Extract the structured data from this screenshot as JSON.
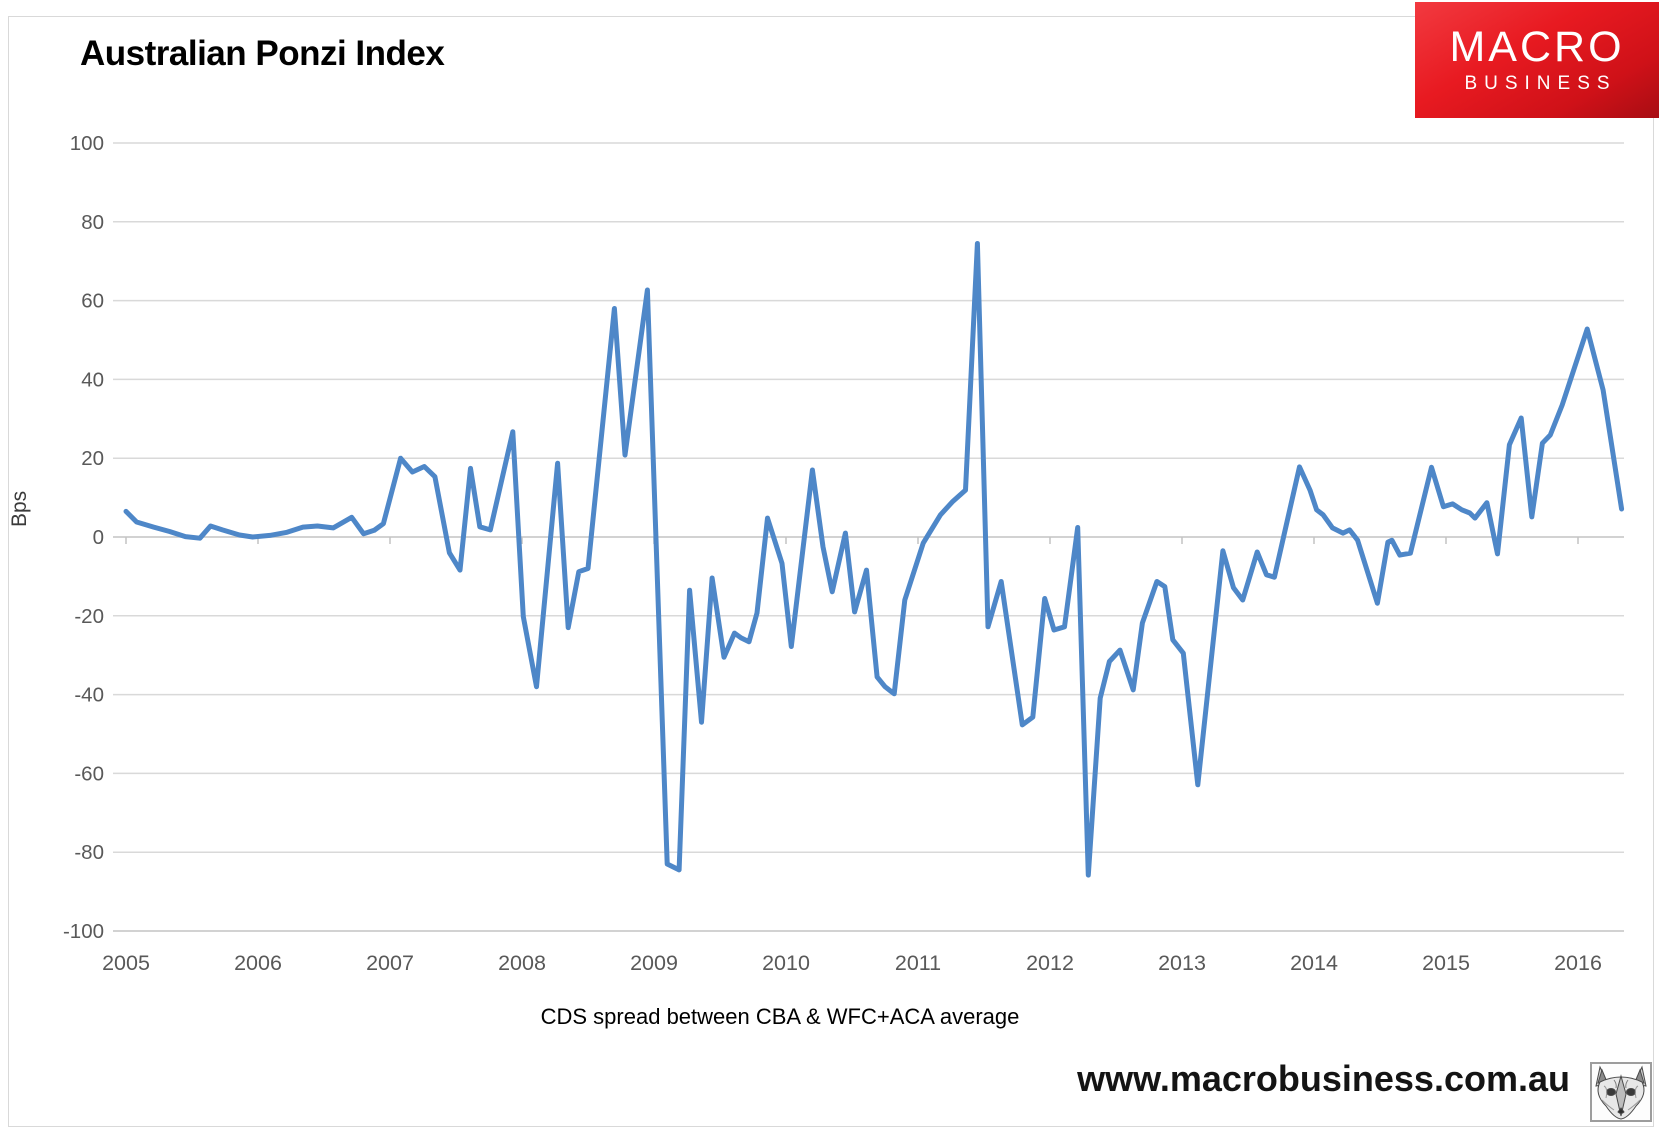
{
  "title": "Australian Ponzi Index",
  "logo": {
    "line1": "MACRO",
    "line2": "BUSINESS",
    "bg_color": "#e81a21",
    "text_color": "#ffffff"
  },
  "footer": {
    "url": "www.macrobusiness.com.au",
    "fox_icon": "fox-sketch-icon"
  },
  "chart_data": {
    "type": "line",
    "title": "Australian Ponzi Index",
    "xlabel": "CDS spread between CBA & WFC+ACA average",
    "ylabel": "Bps",
    "x_tick_labels": [
      "2005",
      "2006",
      "2007",
      "2008",
      "2009",
      "2010",
      "2011",
      "2012",
      "2013",
      "2014",
      "2015",
      "2016"
    ],
    "x_tick_years": [
      2005,
      2006,
      2007,
      2008,
      2009,
      2010,
      2011,
      2012,
      2013,
      2014,
      2015,
      2016
    ],
    "y_tick_labels": [
      "100",
      "80",
      "60",
      "40",
      "20",
      "0",
      "-20",
      "-40",
      "-60",
      "-80",
      "-100"
    ],
    "y_ticks": [
      100,
      80,
      60,
      40,
      20,
      0,
      -20,
      -40,
      -60,
      -80,
      -100
    ],
    "ylim": [
      -100,
      100
    ],
    "xlim": [
      2004.9,
      2016.35
    ],
    "grid": true,
    "legend": "none",
    "line_color": "#4e87c8",
    "grid_color": "#d9d9d9",
    "axis_color": "#c3c3c3",
    "tick_label_color": "#595959",
    "series": [
      {
        "name": "CDS spread between CBA & WFC+ACA average",
        "x": [
          2005.0,
          2005.08,
          2005.21,
          2005.33,
          2005.45,
          2005.56,
          2005.64,
          2005.73,
          2005.86,
          2005.96,
          2006.09,
          2006.22,
          2006.34,
          2006.45,
          2006.57,
          2006.71,
          2006.8,
          2006.88,
          2006.95,
          2007.08,
          2007.17,
          2007.26,
          2007.34,
          2007.45,
          2007.53,
          2007.61,
          2007.68,
          2007.76,
          2007.93,
          2008.01,
          2008.11,
          2008.27,
          2008.35,
          2008.43,
          2008.5,
          2008.7,
          2008.78,
          2008.95,
          2009.1,
          2009.19,
          2009.27,
          2009.36,
          2009.44,
          2009.53,
          2009.61,
          2009.66,
          2009.72,
          2009.78,
          2009.86,
          2009.97,
          2010.04,
          2010.2,
          2010.28,
          2010.35,
          2010.45,
          2010.52,
          2010.61,
          2010.69,
          2010.75,
          2010.82,
          2010.9,
          2011.04,
          2011.17,
          2011.26,
          2011.36,
          2011.45,
          2011.53,
          2011.63,
          2011.79,
          2011.87,
          2011.96,
          2012.03,
          2012.11,
          2012.21,
          2012.29,
          2012.38,
          2012.45,
          2012.53,
          2012.63,
          2012.7,
          2012.81,
          2012.87,
          2012.93,
          2013.01,
          2013.12,
          2013.31,
          2013.39,
          2013.46,
          2013.57,
          2013.64,
          2013.7,
          2013.89,
          2013.97,
          2014.02,
          2014.07,
          2014.14,
          2014.22,
          2014.27,
          2014.33,
          2014.48,
          2014.56,
          2014.59,
          2014.65,
          2014.73,
          2014.89,
          2014.98,
          2015.05,
          2015.12,
          2015.18,
          2015.22,
          2015.31,
          2015.39,
          2015.48,
          2015.57,
          2015.65,
          2015.73,
          2015.79,
          2015.88,
          2016.07,
          2016.19,
          2016.33
        ],
        "y": [
          6.5,
          3.8,
          2.5,
          1.4,
          0.1,
          -0.3,
          2.8,
          1.8,
          0.5,
          0.0,
          0.4,
          1.2,
          2.5,
          2.8,
          2.3,
          5.0,
          0.8,
          1.7,
          3.4,
          20.0,
          16.5,
          17.9,
          15.3,
          -4.0,
          -8.4,
          17.4,
          2.6,
          1.8,
          26.7,
          -20.2,
          -38.0,
          18.7,
          -23.0,
          -8.8,
          -8.0,
          58.0,
          20.8,
          62.7,
          -83.0,
          -84.5,
          -13.5,
          -47.0,
          -10.4,
          -30.5,
          -24.4,
          -25.6,
          -26.6,
          -19.3,
          4.8,
          -6.7,
          -27.8,
          17.0,
          -2.5,
          -13.9,
          1.0,
          -19.0,
          -8.4,
          -35.5,
          -38.0,
          -39.8,
          -16.0,
          -1.5,
          5.6,
          8.9,
          11.9,
          74.5,
          -22.8,
          -11.3,
          -47.7,
          -45.7,
          -15.6,
          -23.6,
          -22.8,
          2.4,
          -85.8,
          -40.9,
          -31.6,
          -28.7,
          -38.8,
          -21.8,
          -11.3,
          -12.6,
          -26.1,
          -29.5,
          -62.9,
          -3.5,
          -12.9,
          -16.0,
          -3.8,
          -9.6,
          -10.2,
          17.8,
          11.9,
          6.9,
          5.6,
          2.3,
          1.0,
          1.8,
          -0.8,
          -16.8,
          -1.3,
          -0.8,
          -4.6,
          -4.1,
          17.7,
          7.7,
          8.4,
          6.9,
          6.1,
          4.8,
          8.7,
          -4.3,
          23.4,
          30.2,
          5.1,
          23.8,
          25.9,
          33.5,
          52.8,
          37.3,
          7.1
        ]
      }
    ]
  }
}
